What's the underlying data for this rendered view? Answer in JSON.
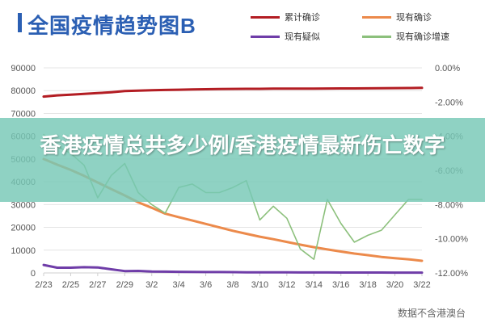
{
  "title": "全国疫情趋势图B",
  "overlay_text": "香港疫情总共多少例/香港疫情最新伤亡数字",
  "source": "数据不含港澳台",
  "colors": {
    "cumulative": "#b31d23",
    "current": "#ec8a4b",
    "suspected": "#6f3da8",
    "growth": "#8cc07c",
    "title": "#2b5fb3",
    "overlay": "#76c8b6"
  },
  "chart_data": {
    "type": "line",
    "title": "全国疫情趋势图B",
    "x": [
      "2/23",
      "2/24",
      "2/25",
      "2/26",
      "2/27",
      "2/28",
      "2/29",
      "3/1",
      "3/2",
      "3/3",
      "3/4",
      "3/5",
      "3/6",
      "3/7",
      "3/8",
      "3/9",
      "3/10",
      "3/11",
      "3/12",
      "3/13",
      "3/14",
      "3/15",
      "3/16",
      "3/17",
      "3/18",
      "3/19",
      "3/20",
      "3/21",
      "3/22"
    ],
    "x_tick_labels": [
      "2/23",
      "2/25",
      "2/27",
      "2/29",
      "3/2",
      "3/4",
      "3/6",
      "3/8",
      "3/10",
      "3/12",
      "3/14",
      "3/16",
      "3/18",
      "3/20",
      "3/22"
    ],
    "y_left": {
      "ticks": [
        0,
        10000,
        20000,
        30000,
        40000,
        50000,
        60000,
        70000,
        80000,
        90000
      ],
      "range": [
        0,
        90000
      ]
    },
    "y_right": {
      "ticks": [
        "0.00%",
        "-2.00%",
        "-4.00%",
        "-6.00%",
        "-8.00%",
        "-10.00%",
        "-12.00%"
      ],
      "range": [
        -12,
        0
      ]
    },
    "series": [
      {
        "name": "累计确诊",
        "axis": "left",
        "color": "#b31d23",
        "values": [
          77400,
          77900,
          78200,
          78600,
          78900,
          79300,
          79800,
          80000,
          80200,
          80300,
          80400,
          80500,
          80600,
          80700,
          80750,
          80800,
          80800,
          80850,
          80850,
          80880,
          80900,
          80920,
          80950,
          80980,
          81000,
          81050,
          81100,
          81150,
          81200
        ]
      },
      {
        "name": "现有确诊",
        "axis": "left",
        "color": "#ec8a4b",
        "values": [
          50000,
          47500,
          45200,
          42600,
          39700,
          36800,
          34000,
          31000,
          28600,
          26000,
          24500,
          23000,
          21500,
          20000,
          18500,
          17200,
          15900,
          14800,
          13600,
          12400,
          11300,
          10300,
          9400,
          8500,
          7800,
          7000,
          6500,
          6000,
          5300
        ]
      },
      {
        "name": "现有疑似",
        "axis": "left",
        "color": "#6f3da8",
        "values": [
          3500,
          2300,
          2300,
          2500,
          2400,
          1600,
          800,
          900,
          600,
          550,
          500,
          450,
          400,
          380,
          350,
          300,
          280,
          260,
          250,
          230,
          210,
          200,
          190,
          180,
          170,
          160,
          150,
          140,
          130
        ]
      },
      {
        "name": "现有确诊增速",
        "axis": "right",
        "color": "#8cc07c",
        "values": [
          -3.9,
          -4.6,
          -5.0,
          -5.7,
          -7.6,
          -6.3,
          -5.6,
          -7.3,
          -8.0,
          -8.5,
          -7.0,
          -6.8,
          -7.3,
          -7.3,
          -7.0,
          -6.6,
          -8.9,
          -8.1,
          -8.8,
          -10.6,
          -11.2,
          -7.7,
          -9.1,
          -10.2,
          -9.8,
          -9.5,
          -8.6,
          -7.7,
          -7.7
        ]
      }
    ],
    "grid": true,
    "legend_position": "top-right"
  }
}
